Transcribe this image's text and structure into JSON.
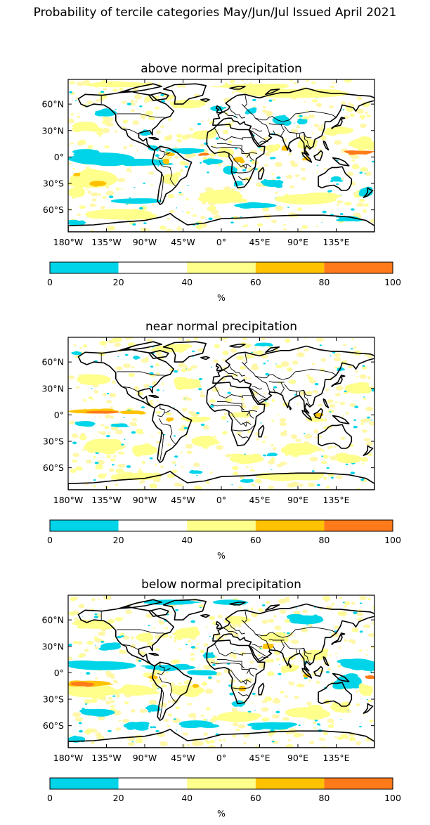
{
  "figure": {
    "title": "Probability of tercile categories May/Jun/Jul Issued April 2021"
  },
  "colors": {
    "bin_0_20": "#00d4e8",
    "bin_20_40": "#ffffff",
    "bin_40_60": "#ffff8c",
    "bin_60_80": "#ffc200",
    "bin_80_100": "#ff7a1a",
    "light_yellow_texture": "#fff6a0",
    "coastline": "#000000"
  },
  "axes": {
    "lat_ticks": [
      "60°N",
      "30°N",
      "0°",
      "30°S",
      "60°S"
    ],
    "lon_ticks": [
      "180°W",
      "135°W",
      "90°W",
      "45°W",
      "0°",
      "45°E",
      "90°E",
      "135°E"
    ]
  },
  "colorbar": {
    "ticks": [
      "0",
      "20",
      "40",
      "60",
      "80",
      "100"
    ],
    "unit": "%"
  },
  "panels": [
    {
      "title": "above normal precipitation"
    },
    {
      "title": "near normal precipitation"
    },
    {
      "title": "below normal precipitation"
    }
  ],
  "chart_data": {
    "type": "heatmap",
    "levels": [
      0,
      20,
      40,
      60,
      80,
      100
    ],
    "lat_ticks_deg": [
      60,
      30,
      0,
      -30,
      -60
    ],
    "lon_ticks_deg": [
      -180,
      -135,
      -90,
      -45,
      0,
      45,
      90,
      135
    ]
  }
}
